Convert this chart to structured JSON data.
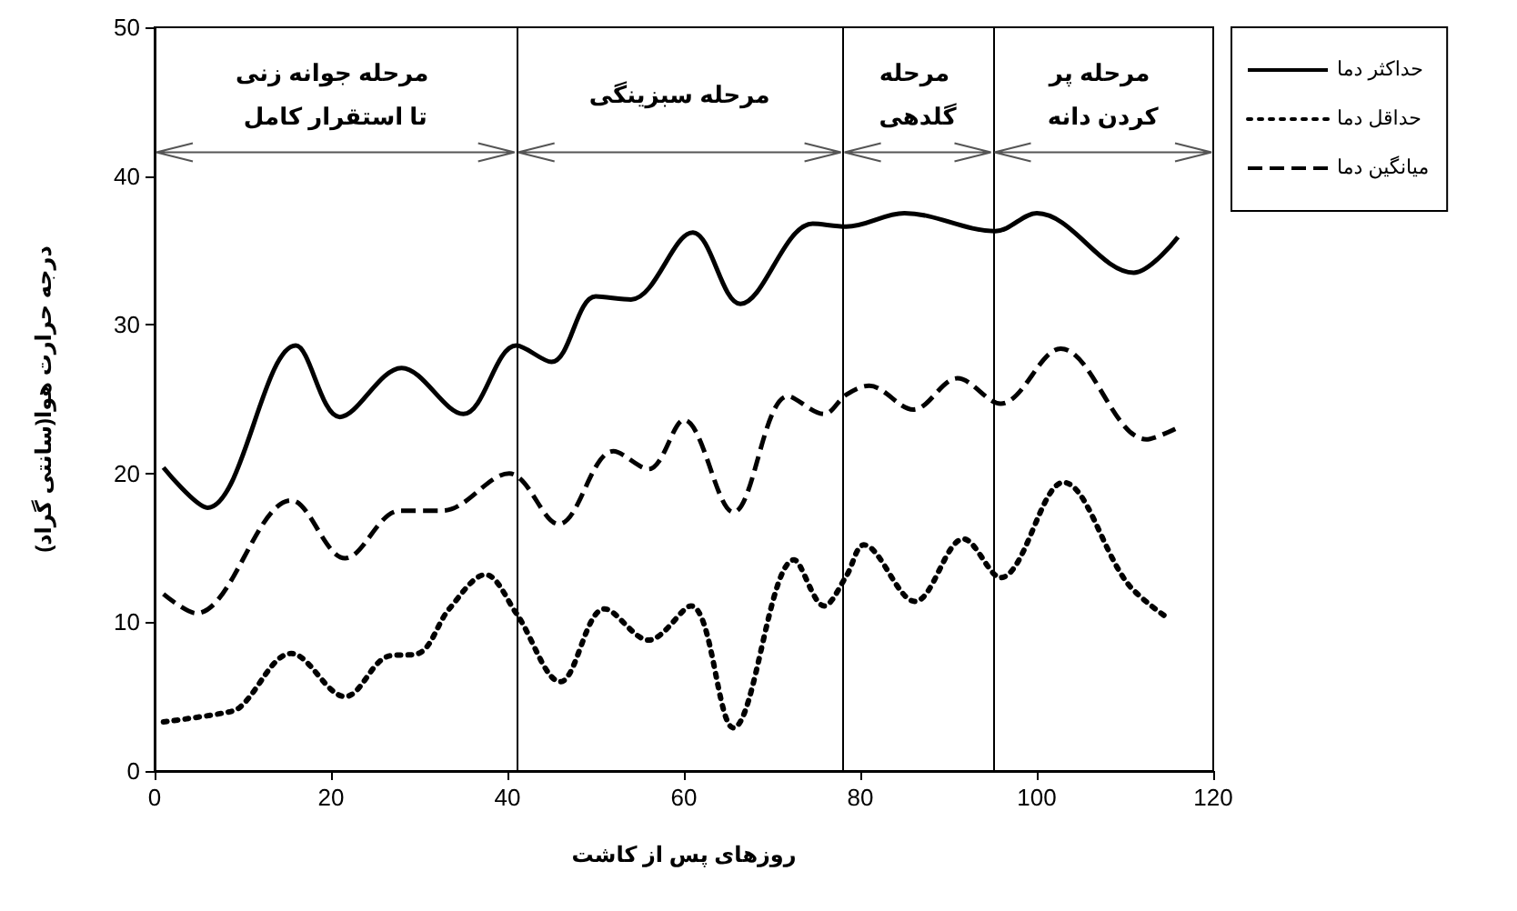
{
  "chart_data": {
    "type": "line",
    "xlabel": "روزهای پس از کاشت",
    "ylabel": "درجه حرارت هوا(سانتی گراد)",
    "xlim": [
      0,
      120
    ],
    "xticks": [
      0,
      20,
      40,
      60,
      80,
      100,
      120
    ],
    "ylim": [
      0,
      50
    ],
    "yticks": [
      0,
      10,
      20,
      30,
      40,
      50
    ],
    "grid": false,
    "legend": "top right",
    "marker": "none",
    "series": [
      {
        "name": "حداکثر دما",
        "color": "#000000",
        "line_style": "solid",
        "x": [
          1,
          6,
          16,
          21,
          28,
          35,
          41,
          45,
          50,
          54,
          61,
          66.4,
          74.6,
          78.4,
          85,
          95.3,
          100,
          111,
          116
        ],
        "values": [
          20.4,
          17.7,
          28.6,
          23.8,
          27.1,
          24,
          28.6,
          27.5,
          31.9,
          31.7,
          36.2,
          31.4,
          36.8,
          36.6,
          37.5,
          36.3,
          37.5,
          33.5,
          35.9
        ]
      },
      {
        "name": "حداقل دما",
        "color": "#000000",
        "line_style": "dotted",
        "x": [
          1,
          7.8,
          9.7,
          15.5,
          21.6,
          26.4,
          29.9,
          33.4,
          37.5,
          41,
          46,
          51,
          56,
          60.8,
          65.6,
          72.5,
          75.9,
          78.4,
          80.4,
          86.2,
          91.7,
          95.9,
          103,
          110.3,
          114.8
        ],
        "values": [
          3.3,
          3.9,
          4.3,
          7.9,
          5,
          7.7,
          7.9,
          10.9,
          13.2,
          10.6,
          6,
          10.9,
          8.8,
          11.1,
          2.9,
          14.2,
          11.1,
          13.1,
          15.2,
          11.4,
          15.6,
          13,
          19.4,
          12.6,
          10.3
        ]
      },
      {
        "name": "میانگین دما",
        "color": "#000000",
        "line_style": "dashed",
        "x": [
          1,
          4.7,
          15.5,
          21.6,
          27.8,
          32.6,
          40.2,
          45.8,
          52,
          56,
          60,
          65.6,
          71.8,
          75.9,
          78.4,
          81,
          86,
          91,
          95.9,
          102.7,
          112.4,
          115.7
        ],
        "values": [
          11.9,
          10.6,
          18.2,
          14.3,
          17.5,
          17.5,
          20,
          16.6,
          21.5,
          20.3,
          23.6,
          17.4,
          25.2,
          24,
          25.3,
          25.9,
          24.3,
          26.4,
          24.7,
          28.4,
          22.3,
          23
        ]
      }
    ],
    "ref_lines": [
      {
        "axis": "x",
        "value": 41
      },
      {
        "axis": "x",
        "value": 78
      },
      {
        "axis": "x",
        "value": 95
      }
    ],
    "annotations": [
      "مرحله جوانه زنی تا استقرار کامل",
      "مرحله سبزینگی",
      "مرحله گلدهی",
      "مرحله پر کردن دانه"
    ]
  }
}
